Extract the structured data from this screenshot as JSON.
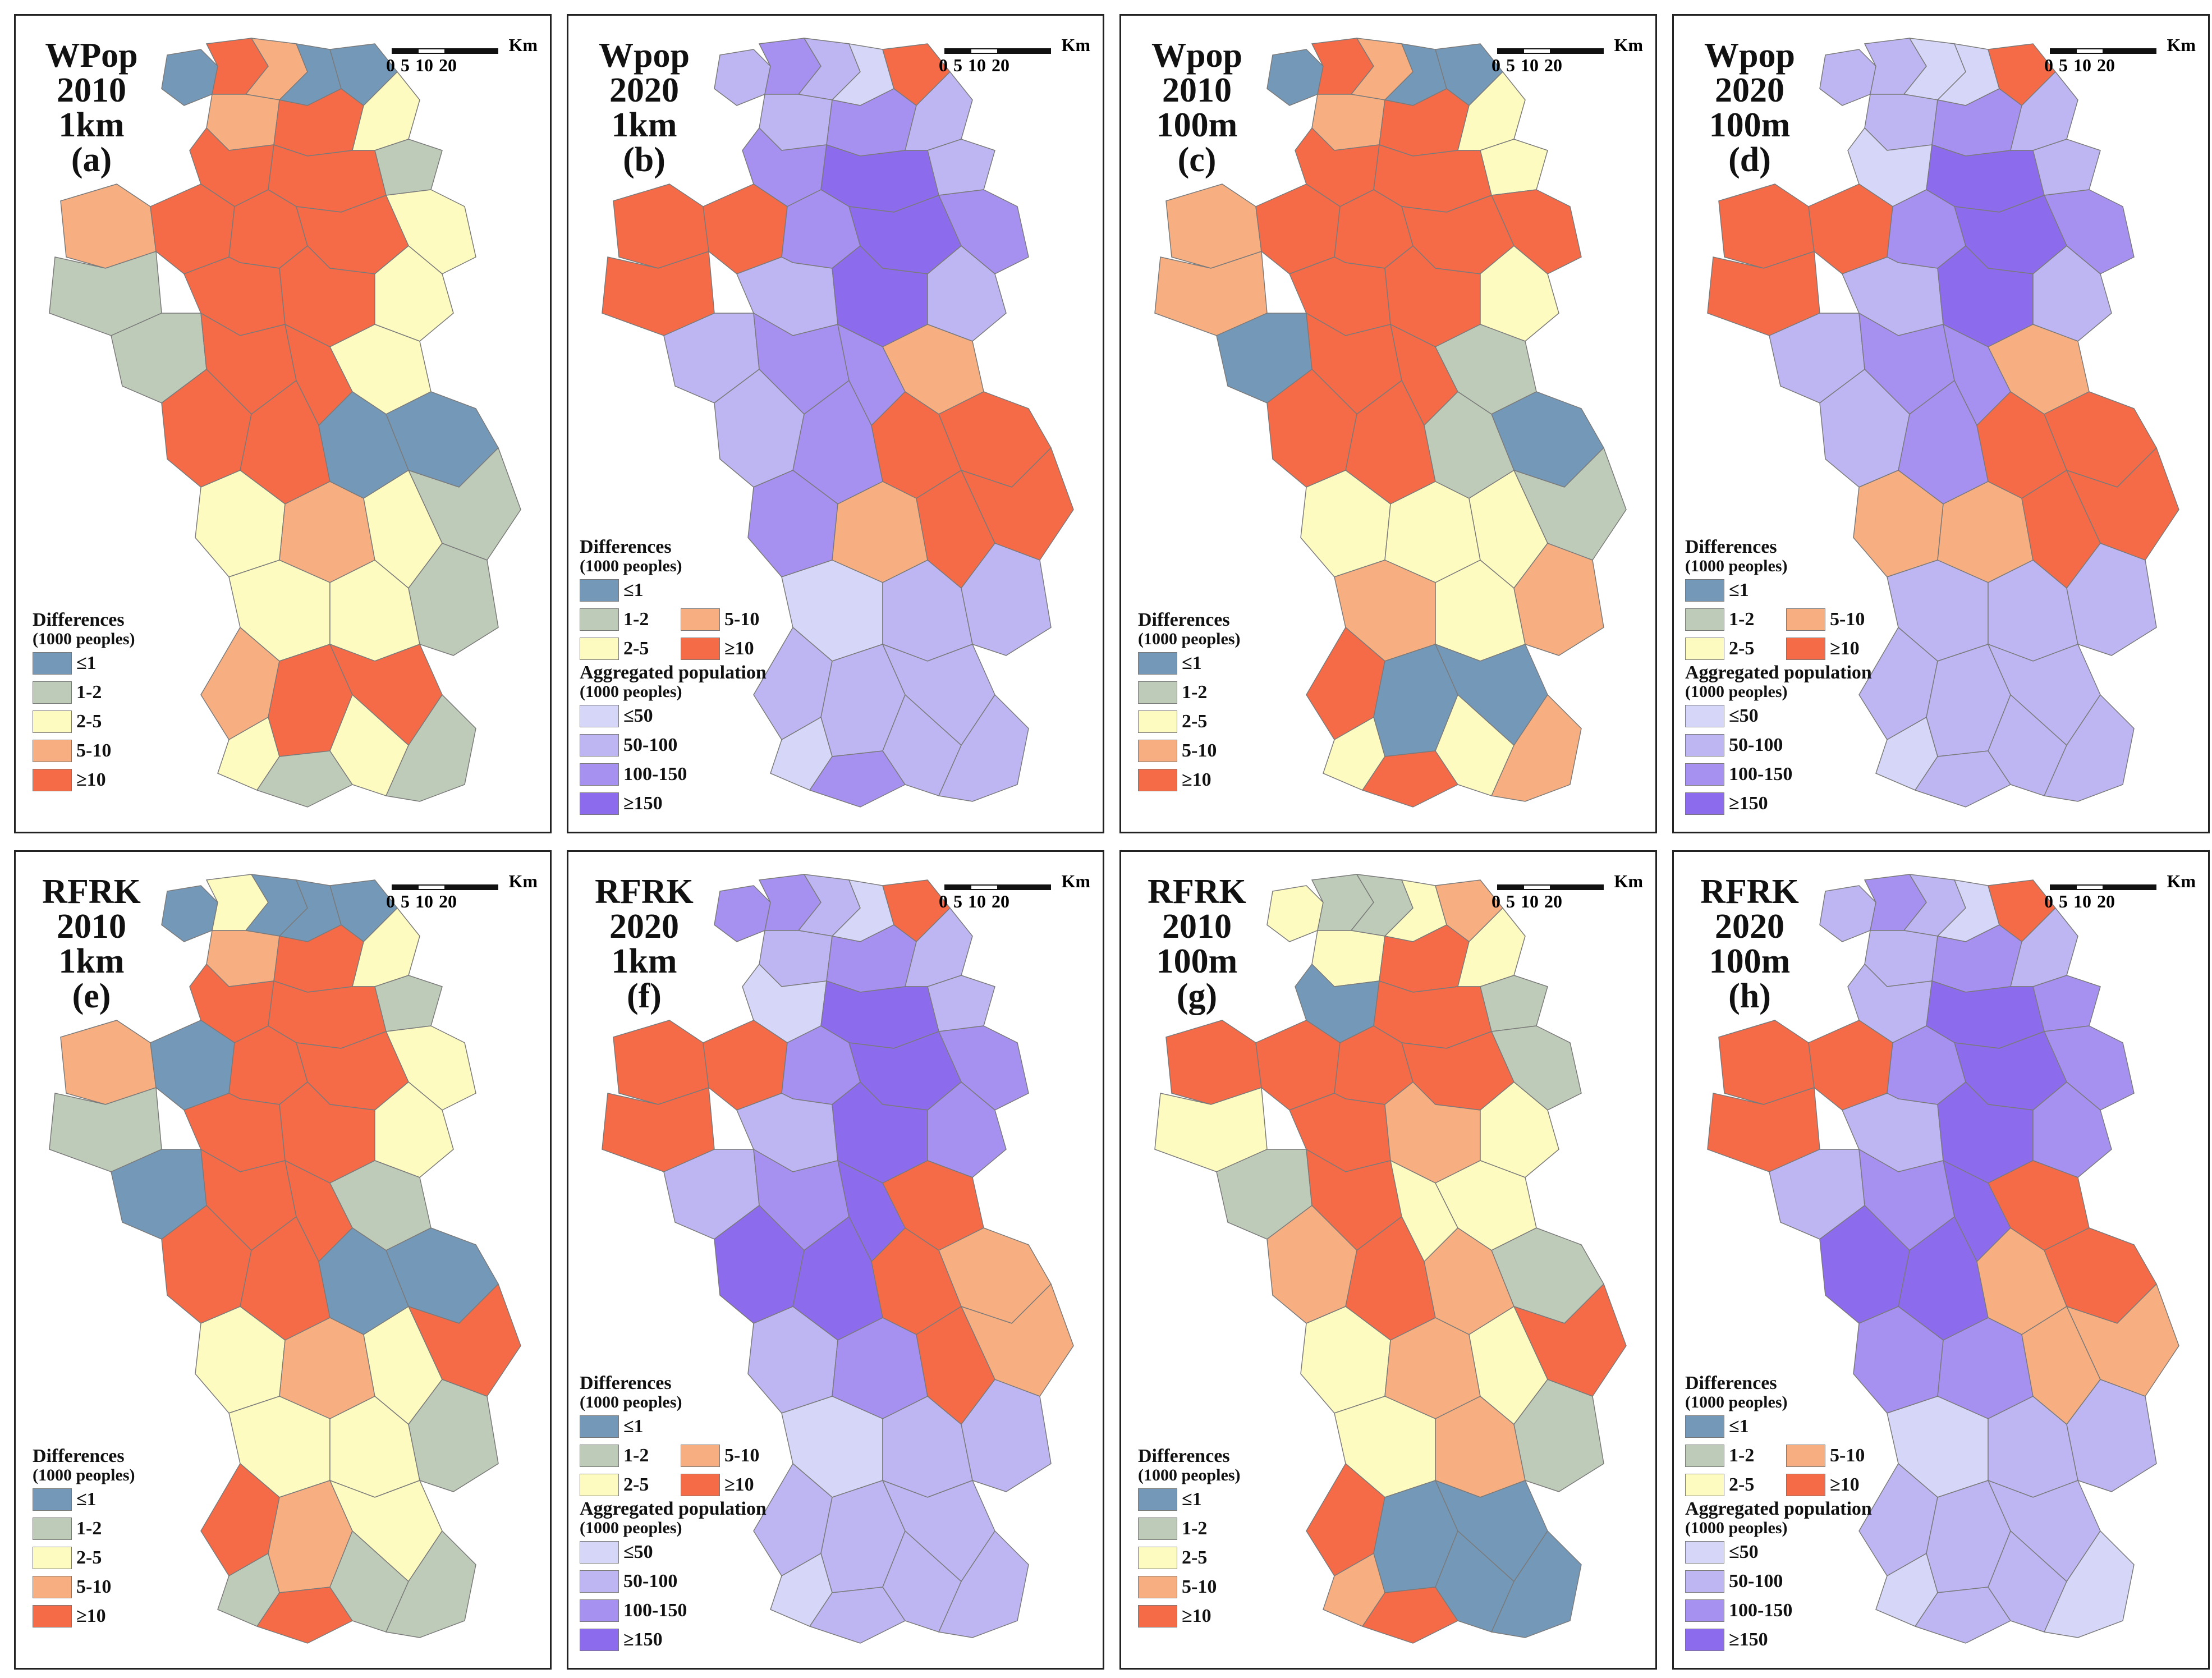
{
  "colors": {
    "diff_le1": "#7498B8",
    "diff_1_2": "#BECBB8",
    "diff_2_5": "#FDFBC0",
    "diff_5_10": "#F7AE80",
    "diff_ge10": "#F56A47",
    "pop_le50": "#D6D6F8",
    "pop_50_100": "#BDB6F3",
    "pop_100_150": "#A690F0",
    "pop_ge150": "#8C6CEC",
    "border": "#7a7a7a"
  },
  "scale": {
    "unit": "Km",
    "ticks": [
      "0",
      "5",
      "10",
      "20"
    ]
  },
  "legend_diff": {
    "title": "Differences",
    "subtitle": "(1000 peoples)",
    "classes": [
      "≤1",
      "1-2",
      "2-5",
      "5-10",
      "≥10"
    ]
  },
  "legend_pop": {
    "title": "Aggregated population",
    "subtitle": "(1000 peoples)",
    "classes": [
      "≤50",
      "50-100",
      "100-150",
      "≥150"
    ]
  },
  "panels": [
    {
      "id": "a",
      "title": [
        "WPop",
        "2010",
        "1km",
        "(a)"
      ],
      "type": "diff"
    },
    {
      "id": "b",
      "title": [
        "Wpop",
        "2020",
        "1km",
        "(b)"
      ],
      "type": "pop"
    },
    {
      "id": "c",
      "title": [
        "Wpop",
        "2010",
        "100m",
        "(c)"
      ],
      "type": "diff"
    },
    {
      "id": "d",
      "title": [
        "Wpop",
        "2020",
        "100m",
        "(d)"
      ],
      "type": "pop"
    },
    {
      "id": "e",
      "title": [
        "RFRK",
        "2010",
        "1km",
        "(e)"
      ],
      "type": "diff"
    },
    {
      "id": "f",
      "title": [
        "RFRK",
        "2020",
        "1km",
        "(f)"
      ],
      "type": "pop"
    },
    {
      "id": "g",
      "title": [
        "RFRK",
        "2010",
        "100m",
        "(g)"
      ],
      "type": "diff"
    },
    {
      "id": "h",
      "title": [
        "RFRK",
        "2020",
        "100m",
        "(h)"
      ],
      "type": "pop"
    }
  ]
}
